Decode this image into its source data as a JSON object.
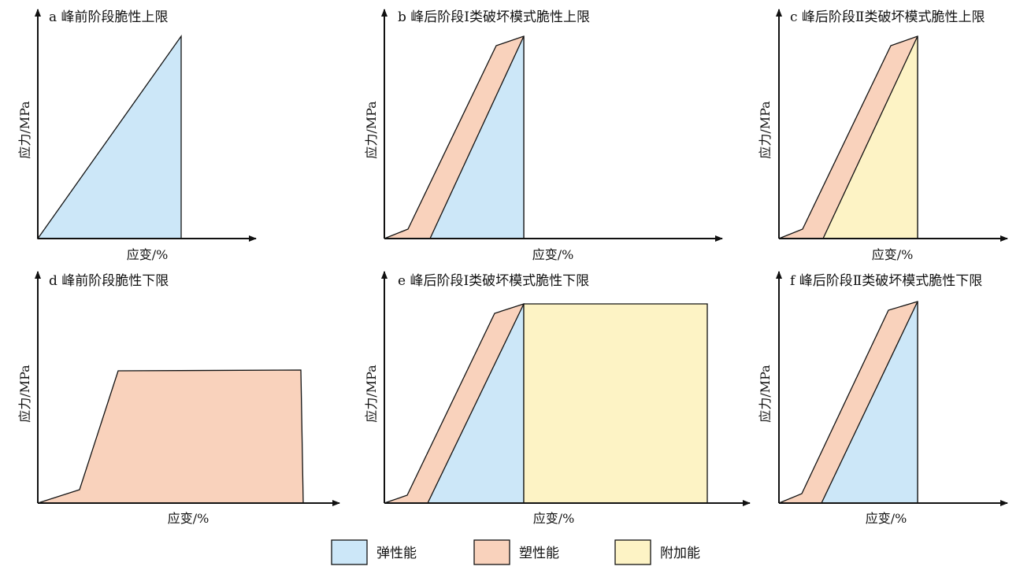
{
  "colors": {
    "elastic": "#cce7f8",
    "plastic": "#f9d2bc",
    "additional": "#fdf3c5",
    "axis": "#111111"
  },
  "panels": [
    {
      "id": "a",
      "title": "a 峰前阶段脆性上限",
      "ylabel": "应力/MPa",
      "xlabel": "应变/%",
      "regions": [
        "elastic"
      ]
    },
    {
      "id": "b",
      "title": "b 峰后阶段Ⅰ类破坏模式脆性上限",
      "ylabel": "应力/MPa",
      "xlabel": "应变/%",
      "regions": [
        "plastic",
        "elastic"
      ]
    },
    {
      "id": "c",
      "title": "c 峰后阶段Ⅱ类破坏模式脆性上限",
      "ylabel": "应力/MPa",
      "xlabel": "应变/%",
      "regions": [
        "plastic",
        "additional"
      ]
    },
    {
      "id": "d",
      "title": "d 峰前阶段脆性下限",
      "ylabel": "应力/MPa",
      "xlabel": "应变/%",
      "regions": [
        "plastic"
      ]
    },
    {
      "id": "e",
      "title": "e 峰后阶段Ⅰ类破坏模式脆性下限",
      "ylabel": "应力/MPa",
      "xlabel": "应变/%",
      "regions": [
        "plastic",
        "elastic",
        "additional"
      ]
    },
    {
      "id": "f",
      "title": "f 峰后阶段Ⅱ类破坏模式脆性下限",
      "ylabel": "应力/MPa",
      "xlabel": "应变/%",
      "regions": [
        "plastic",
        "elastic"
      ]
    }
  ],
  "legend": [
    {
      "key": "elastic",
      "label": "弹性能"
    },
    {
      "key": "plastic",
      "label": "塑性能"
    },
    {
      "key": "additional",
      "label": "附加能"
    }
  ]
}
